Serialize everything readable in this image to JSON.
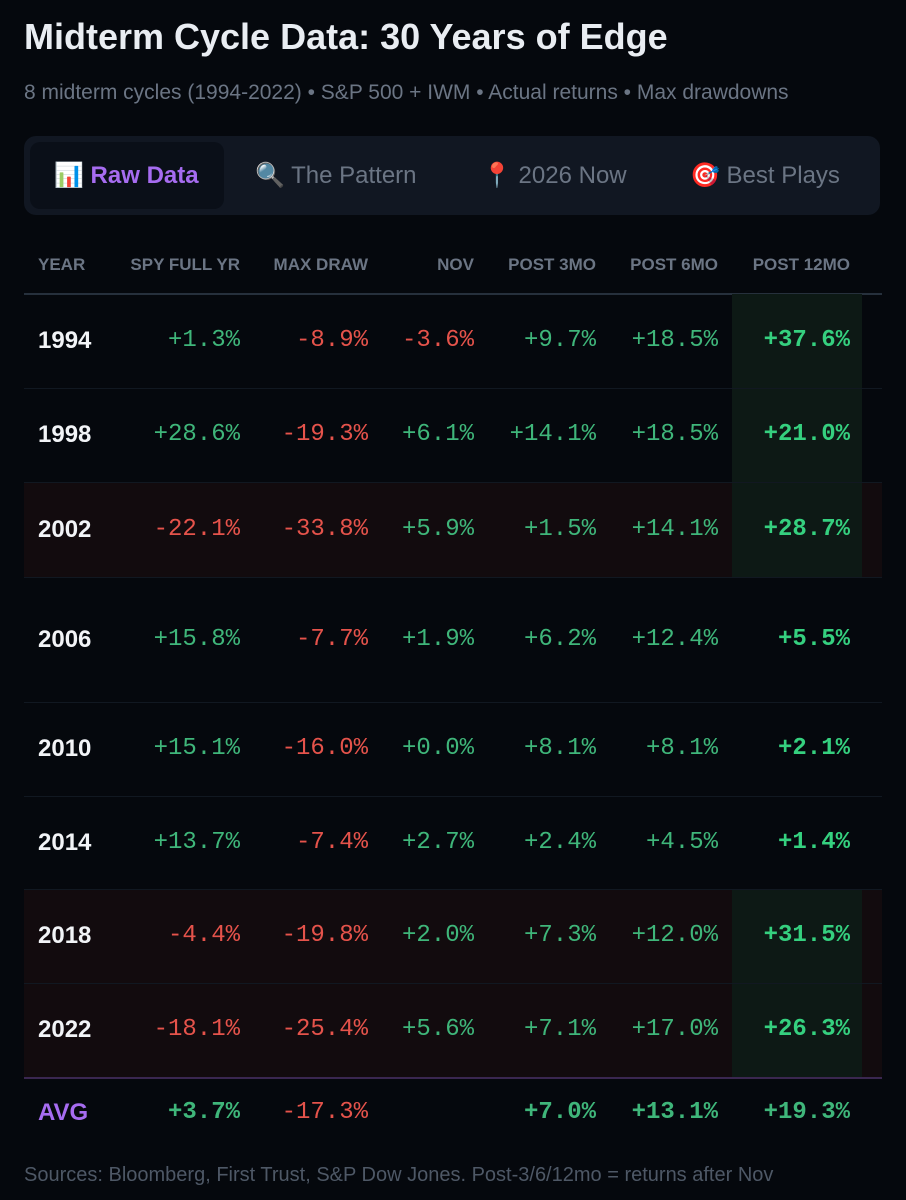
{
  "header": {
    "title": "Midterm Cycle Data: 30 Years of Edge",
    "subtitle": "8 midterm cycles (1994-2022) • S&P 500 + IWM • Actual returns • Max drawdowns"
  },
  "tabs": [
    "📊 Raw Data",
    "🔍 The Pattern",
    "📍 2026 Now",
    "🎯 Best Plays"
  ],
  "table": {
    "columns": [
      "YEAR",
      "SPY FULL YR",
      "MAX DRAW",
      "NOV",
      "POST 3MO",
      "POST 6MO",
      "POST 12MO"
    ],
    "rows": [
      [
        "1994",
        "+1.3%",
        "-8.9%",
        "-3.6%",
        "+9.7%",
        "+18.5%",
        "+37.6%"
      ],
      [
        "1998",
        "+28.6%",
        "-19.3%",
        "+6.1%",
        "+14.1%",
        "+18.5%",
        "+21.0%"
      ],
      [
        "2002",
        "-22.1%",
        "-33.8%",
        "+5.9%",
        "+1.5%",
        "+14.1%",
        "+28.7%"
      ],
      [
        "2006",
        "+15.8%",
        "-7.7%",
        "+1.9%",
        "+6.2%",
        "+12.4%",
        "+5.5%"
      ],
      [
        "2010",
        "+15.1%",
        "-16.0%",
        "+0.0%",
        "+8.1%",
        "+8.1%",
        "+2.1%"
      ],
      [
        "2014",
        "+13.7%",
        "-7.4%",
        "+2.7%",
        "+2.4%",
        "+4.5%",
        "+1.4%"
      ],
      [
        "2018",
        "-4.4%",
        "-19.8%",
        "+2.0%",
        "+7.3%",
        "+12.0%",
        "+31.5%"
      ],
      [
        "2022",
        "-18.1%",
        "-25.4%",
        "+5.6%",
        "+7.1%",
        "+17.0%",
        "+26.3%"
      ]
    ],
    "avg": {
      "label": "AVG",
      "spy_full_yr": "+3.7%",
      "max_draw": "-17.3%",
      "post_3mo": "+7.0%",
      "post_6mo": "+13.1%",
      "post_12mo": "+19.3%"
    }
  },
  "footer": "Sources: Bloomberg, First Trust, S&P Dow Jones. Post-3/6/12mo = returns after Nov"
}
